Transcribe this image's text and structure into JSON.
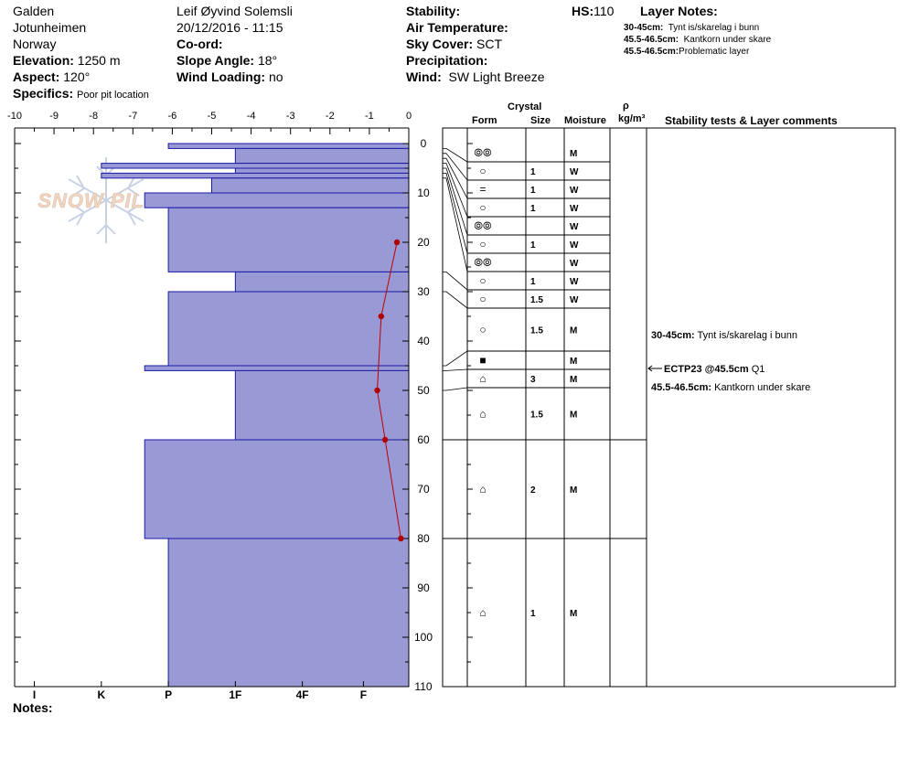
{
  "header": {
    "location": "Galden",
    "range": "Jotunheimen",
    "country": "Norway",
    "elevation_label": "Elevation:",
    "elevation_value": "1250 m",
    "aspect_label": "Aspect:",
    "aspect_value": "120°",
    "specifics_label": "Specifics:",
    "specifics_value": "Poor pit location",
    "observer": "Leif Øyvind Solemsli",
    "datetime": "20/12/2016 - 11:15",
    "coord_label": "Co-ord:",
    "slope_label": "Slope Angle:",
    "slope_value": "18°",
    "wind_loading_label": "Wind Loading:",
    "wind_loading_value": "no",
    "stability_label": "Stability:",
    "air_temp_label": "Air Temperature:",
    "sky_label": "Sky Cover:",
    "sky_value": "SCT",
    "precip_label": "Precipitation:",
    "wind_label": "Wind:",
    "wind_value": "SW Light Breeze",
    "hs_label": "HS:",
    "hs_value": "110",
    "layer_notes_label": "Layer Notes:",
    "layer_notes": [
      {
        "range": "30-45cm:",
        "text": "Tynt is/skarelag i bunn"
      },
      {
        "range": "45.5-46.5cm:",
        "text": "Kantkorn under skare"
      },
      {
        "range": "45.5-46.5cm:",
        "text": "Problematic layer"
      }
    ]
  },
  "table_headers": {
    "crystal": "Crystal",
    "form": "Form",
    "size": "Size",
    "moisture": "Moisture",
    "rho": "ρ",
    "density_unit": "kg/m³",
    "stability_comments": "Stability tests & Layer comments"
  },
  "notes_label": "Notes:",
  "logo_text": "SNOW PILOT",
  "comments": [
    {
      "depth": 38,
      "bold": "30-45cm:",
      "text": "Tynt is/skarelag i bunn"
    },
    {
      "depth": 45.5,
      "bold": "ECTP23 @45.5cm",
      "text": "Q1",
      "arrow": true
    },
    {
      "depth": 49.5,
      "bold": "45.5-46.5cm:",
      "text": "Kantkorn under skare"
    }
  ],
  "chart_data": {
    "type": "snow_profile",
    "temperature_axis": {
      "min": -10,
      "max": 0,
      "ticks": [
        "-10",
        "-9",
        "-8",
        "-7",
        "-6",
        "-5",
        "-4",
        "-3",
        "-2",
        "-1",
        "0"
      ]
    },
    "depth_axis": {
      "min": 0,
      "max": 110,
      "ticks": [
        "0",
        "10",
        "20",
        "30",
        "40",
        "50",
        "60",
        "70",
        "80",
        "90",
        "100",
        "110"
      ],
      "unit": "cm"
    },
    "hardness_ticks": [
      {
        "label": "I",
        "t": -9.5
      },
      {
        "label": "K",
        "t": -7.8
      },
      {
        "label": "P",
        "t": -6.1
      },
      {
        "label": "1F",
        "t": -4.4
      },
      {
        "label": "4F",
        "t": -2.7
      },
      {
        "label": "F",
        "t": -1.15
      }
    ],
    "hardness_layers": [
      {
        "top": 0,
        "bottom": 1,
        "t": -6.1
      },
      {
        "top": 1,
        "bottom": 4,
        "t": -4.4
      },
      {
        "top": 4,
        "bottom": 5,
        "t": -7.8
      },
      {
        "top": 5,
        "bottom": 6,
        "t": -4.4
      },
      {
        "top": 6,
        "bottom": 7,
        "t": -7.8
      },
      {
        "top": 7,
        "bottom": 10,
        "t": -5.0
      },
      {
        "top": 10,
        "bottom": 13,
        "t": -6.7
      },
      {
        "top": 13,
        "bottom": 26,
        "t": -6.1
      },
      {
        "top": 26,
        "bottom": 30,
        "t": -4.4
      },
      {
        "top": 30,
        "bottom": 45,
        "t": -6.1
      },
      {
        "top": 45,
        "bottom": 46,
        "t": -6.7
      },
      {
        "top": 46,
        "bottom": 60,
        "t": -4.4
      },
      {
        "top": 60,
        "bottom": 80,
        "t": -6.7
      },
      {
        "top": 80,
        "bottom": 110,
        "t": -6.1
      }
    ],
    "temperature_profile": [
      {
        "depth": 20,
        "temp": -0.3
      },
      {
        "depth": 35,
        "temp": -0.7
      },
      {
        "depth": 50,
        "temp": -0.8
      },
      {
        "depth": 60,
        "temp": -0.6
      },
      {
        "depth": 80,
        "temp": -0.2
      }
    ],
    "crystal_layers": [
      {
        "top": 0,
        "bottom": 1,
        "form": "⦾⦾",
        "size": "",
        "moisture": "M"
      },
      {
        "top": 1,
        "bottom": 2,
        "form": "○",
        "size": "1",
        "moisture": "W"
      },
      {
        "top": 2,
        "bottom": 3,
        "form": "=",
        "size": "1",
        "moisture": "W"
      },
      {
        "top": 3,
        "bottom": 4,
        "form": "○",
        "size": "1",
        "moisture": "W"
      },
      {
        "top": 4,
        "bottom": 5,
        "form": "⦾⦾",
        "size": "",
        "moisture": "W"
      },
      {
        "top": 5,
        "bottom": 6,
        "form": "○",
        "size": "1",
        "moisture": "W"
      },
      {
        "top": 6,
        "bottom": 7,
        "form": "⦾⦾",
        "size": "",
        "moisture": "W"
      },
      {
        "top": 7,
        "bottom": 26,
        "form": "○",
        "size": "1",
        "moisture": "W"
      },
      {
        "top": 26,
        "bottom": 30,
        "form": "○",
        "size": "1.5",
        "moisture": "W"
      },
      {
        "top": 30,
        "bottom": 45,
        "form": "○",
        "size": "1.5",
        "moisture": "M"
      },
      {
        "top": 45,
        "bottom": 46,
        "form": "■",
        "size": "",
        "moisture": "M"
      },
      {
        "top": 46,
        "bottom": 50,
        "form": "⌂",
        "size": "3",
        "moisture": "M"
      },
      {
        "top": 50,
        "bottom": 60,
        "form": "⌂",
        "size": "1.5",
        "moisture": "M"
      },
      {
        "top": 60,
        "bottom": 80,
        "form": "⌂",
        "size": "2",
        "moisture": "M"
      },
      {
        "top": 80,
        "bottom": 110,
        "form": "⌂",
        "size": "1",
        "moisture": "M"
      }
    ]
  }
}
